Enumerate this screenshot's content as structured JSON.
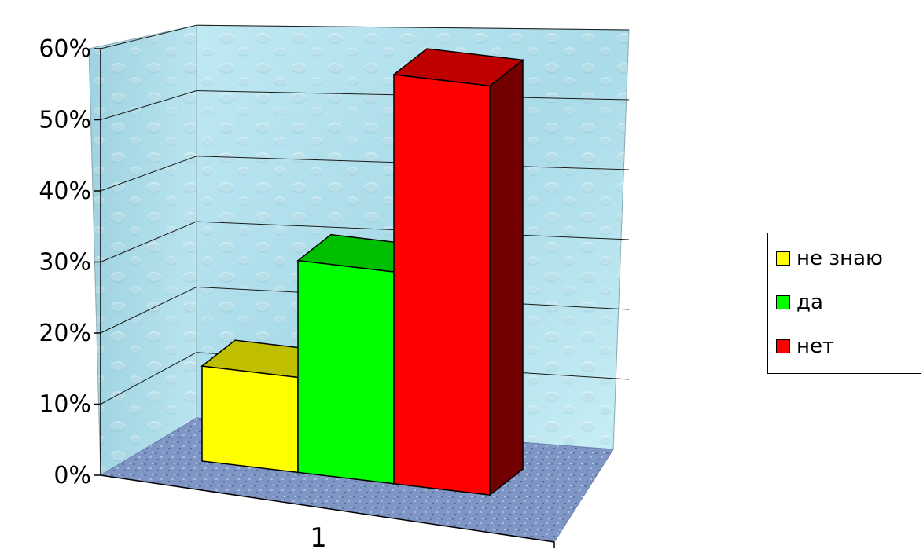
{
  "chart_data": {
    "type": "bar",
    "style": "3d-clustered-column",
    "categories": [
      "1"
    ],
    "series": [
      {
        "name": "не знаю",
        "values": [
          0.13
        ],
        "color": "#ffff00"
      },
      {
        "name": "да",
        "values": [
          0.29
        ],
        "color": "#00ff00"
      },
      {
        "name": "нет",
        "values": [
          0.56
        ],
        "color": "#ff0000"
      }
    ],
    "ylim": [
      0,
      0.6
    ],
    "yticks": [
      "0%",
      "10%",
      "20%",
      "30%",
      "40%",
      "50%",
      "60%"
    ],
    "xlabel": "",
    "ylabel": "",
    "title": "",
    "grid": true,
    "legend_position": "right",
    "walls": "light blue water-drop texture",
    "floor": "blue granite texture"
  }
}
